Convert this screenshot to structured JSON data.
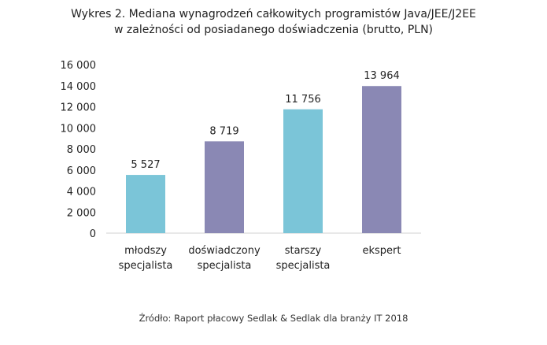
{
  "chart_data": {
    "type": "bar",
    "title_line1": "Wykres 2. Mediana wynagrodzeń całkowitych programistów Java/JEE/J2EE",
    "title_line2": "w zależności od posiadanego doświadczenia (brutto, PLN)",
    "categories": [
      [
        "młodszy",
        "specjalista"
      ],
      [
        "doświadczony",
        "specjalista"
      ],
      [
        "starszy",
        "specjalista"
      ],
      [
        "ekspert"
      ]
    ],
    "values": [
      5527,
      8719,
      11756,
      13964
    ],
    "value_labels": [
      "5 527",
      "8 719",
      "11 756",
      "13 964"
    ],
    "yticks": [
      0,
      2000,
      4000,
      6000,
      8000,
      10000,
      12000,
      14000,
      16000
    ],
    "ytick_labels": [
      "0",
      "2 000",
      "4 000",
      "6 000",
      "8 000",
      "10 000",
      "12 000",
      "14 000",
      "16 000"
    ],
    "ylim": [
      0,
      16000
    ],
    "grid": false,
    "bar_colors": [
      "#7bc5d8",
      "#8a88b4",
      "#7bc5d8",
      "#8a88b4"
    ],
    "source": "Źródło: Raport płacowy Sedlak & Sedlak dla branży IT 2018"
  }
}
